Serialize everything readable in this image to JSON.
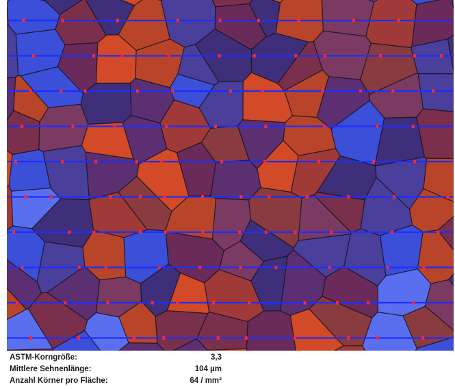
{
  "colors": {
    "grain_palette": [
      "#6a2a5a",
      "#7a2f4c",
      "#8a3b3f",
      "#b8452a",
      "#d24a27",
      "#4a3f9a",
      "#3c4fd8",
      "#5a6ff0",
      "#3f2f7a",
      "#7a3a62",
      "#a03a38",
      "#5b2f72"
    ],
    "test_line": "#1f2dff",
    "intercept_mark": "#ff2a2a",
    "grain_boundary": "#101018"
  },
  "measurement_grid": {
    "line_count": 10
  },
  "results": {
    "rows": [
      {
        "label": "ASTM-Korngröße:",
        "value": "3,3"
      },
      {
        "label": "Mittlere Sehnenlänge:",
        "value": "104 µm"
      },
      {
        "label": "Anzahl Körner pro Fläche:",
        "value": "64 / mm²"
      }
    ]
  }
}
